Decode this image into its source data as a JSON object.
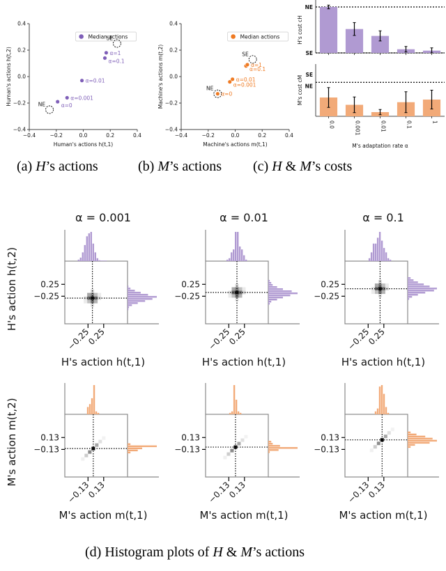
{
  "colors": {
    "human": "#7f5fb8",
    "human_fill": "#b09ad2",
    "machine": "#ef7a22",
    "machine_fill": "#f2aa78",
    "axis": "#444444",
    "frame": "#888888",
    "text": "#111111"
  },
  "captions": {
    "a": {
      "prefix": "(a) ",
      "italic": "H",
      "suffix": "’s actions"
    },
    "b": {
      "prefix": "(b) ",
      "italic": "M",
      "suffix": "’s actions"
    },
    "c": {
      "prefix": "(c) ",
      "italic": "H",
      "mid": " & ",
      "italic2": "M",
      "suffix": "’s costs"
    },
    "d": {
      "prefix": "(d) Histogram plots of ",
      "italic": "H",
      "mid": " & ",
      "italic2": "M",
      "suffix": "’s actions"
    }
  },
  "chart_data": [
    {
      "id": "a",
      "type": "scatter",
      "xlabel": "Human's actions h(t,1)",
      "ylabel": "Human's actions h(t,2)",
      "xlim": [
        -0.4,
        0.4
      ],
      "ylim": [
        -0.4,
        0.4
      ],
      "xticks": [
        "−0.4",
        "−0.2",
        "0.0",
        "0.2",
        "0.4"
      ],
      "yticks": [
        "−0.4",
        "−0.2",
        "0.0",
        "0.2",
        "0.4"
      ],
      "legend": {
        "label": "Median actions",
        "position": "top-right"
      },
      "points": [
        {
          "label": "α=0",
          "x": -0.19,
          "y": -0.19
        },
        {
          "label": "α=0.001",
          "x": -0.12,
          "y": -0.16
        },
        {
          "label": "α=0.01",
          "x": -0.01,
          "y": -0.03
        },
        {
          "label": "α=0.1",
          "x": 0.16,
          "y": 0.14
        },
        {
          "label": "α=1",
          "x": 0.17,
          "y": 0.18
        }
      ],
      "references": [
        {
          "label": "NE",
          "x": -0.25,
          "y": -0.25
        },
        {
          "label": "SE",
          "x": 0.25,
          "y": 0.25
        }
      ]
    },
    {
      "id": "b",
      "type": "scatter",
      "xlabel": "Machine's actions m(t,1)",
      "ylabel": "Machine's actions m(t,2)",
      "xlim": [
        -0.4,
        0.4
      ],
      "ylim": [
        -0.4,
        0.4
      ],
      "xticks": [
        "−0.4",
        "−0.2",
        "0.0",
        "0.2",
        "0.4"
      ],
      "yticks": [
        "−0.4",
        "−0.2",
        "0.0",
        "0.2",
        "0.4"
      ],
      "legend": {
        "label": "Median actions",
        "position": "top-right"
      },
      "points": [
        {
          "label": "α=0",
          "x": -0.13,
          "y": -0.13
        },
        {
          "label": "α=0.001",
          "x": -0.04,
          "y": -0.04
        },
        {
          "label": "α=0.01",
          "x": -0.02,
          "y": -0.02
        },
        {
          "label": "α=0.1",
          "x": 0.08,
          "y": 0.08
        },
        {
          "label": "α=1",
          "x": 0.09,
          "y": 0.09
        }
      ],
      "references": [
        {
          "label": "NE",
          "x": -0.13,
          "y": -0.13
        },
        {
          "label": "SE",
          "x": 0.13,
          "y": 0.13
        }
      ]
    },
    {
      "id": "c",
      "type": "bar",
      "xlabel": "M's adaptation rate α",
      "categories": [
        "0.0",
        "0.001",
        "0.01",
        "0.1",
        "1"
      ],
      "series": [
        {
          "name": "H's cost c_H",
          "ylabel": "H's cost c_H",
          "values": [
            1.0,
            0.52,
            0.37,
            0.08,
            0.05
          ],
          "errors": [
            0.04,
            0.14,
            0.11,
            0.06,
            0.06
          ],
          "ref_lines": [
            {
              "label": "NE",
              "value": 1.0
            },
            {
              "label": "SE",
              "value": 0.0
            }
          ]
        },
        {
          "name": "M's cost c_M",
          "ylabel": "M's cost c_M",
          "values": [
            0.36,
            0.22,
            0.08,
            0.27,
            0.32
          ],
          "errors": [
            0.19,
            0.15,
            0.05,
            0.2,
            0.18
          ],
          "ref_lines": [
            {
              "label": "SE",
              "value": 0.75
            },
            {
              "label": "NE",
              "value": 0.65
            }
          ],
          "ylim": [
            0,
            1.0
          ]
        }
      ]
    },
    {
      "id": "d",
      "type": "heatmap",
      "title": "(d) Histogram plots of H & M's actions",
      "panels": [
        {
          "row": "H",
          "alpha": "α = 0.001",
          "xlabel": "H's action h(t,1)",
          "ylabel": "H's action h(t,2)",
          "ticks": [
            "−0.25",
            "0.25"
          ],
          "median": [
            -0.1,
            -0.15
          ],
          "marg_x": [
            0.05,
            0.12,
            0.3,
            0.55,
            0.85,
            0.95,
            1.0,
            0.6,
            0.3,
            0.1,
            0.03,
            0.02,
            0.02,
            0.02
          ],
          "marg_y": [
            0.03,
            0.1,
            0.25,
            0.45,
            0.7,
            1.0,
            0.85,
            0.6,
            0.35,
            0.15,
            0.05,
            0.03
          ]
        },
        {
          "row": "H",
          "alpha": "α = 0.01",
          "xlabel": "H's action h(t,1)",
          "ylabel": "H's action h(t,2)",
          "ticks": [
            "−0.25",
            "0.25"
          ],
          "median": [
            0.0,
            0.0
          ],
          "marg_x": [
            0.05,
            0.1,
            0.3,
            0.4,
            1.0,
            1.0,
            0.5,
            0.4,
            0.2,
            0.05
          ],
          "marg_y": [
            0.05,
            0.1,
            0.15,
            0.3,
            0.5,
            0.8,
            1.0,
            0.75,
            0.5,
            0.3,
            0.1,
            0.05
          ]
        },
        {
          "row": "H",
          "alpha": "α = 0.1",
          "xlabel": "H's action h(t,1)",
          "ylabel": "H's action h(t,2)",
          "ticks": [
            "−0.25",
            "0.25"
          ],
          "median": [
            0.1,
            0.1
          ],
          "marg_x": [
            0.1,
            0.3,
            0.6,
            0.6,
            0.8,
            1.0,
            0.7,
            0.45,
            0.3,
            0.1,
            0.05
          ],
          "marg_y": [
            0.1,
            0.2,
            0.35,
            0.55,
            0.75,
            1.0,
            0.9,
            0.6,
            0.35,
            0.15,
            0.05
          ]
        },
        {
          "row": "M",
          "alpha": "α = 0.001",
          "xlabel": "M's action m(t,1)",
          "ylabel": "M's action m(t,2)",
          "ticks": [
            "−0.13",
            "0.13"
          ],
          "median": [
            -0.04,
            -0.04
          ],
          "marg_x": [
            0.25,
            0.35,
            0.55,
            1.0,
            0.1,
            0.05
          ],
          "marg_y": [
            0.1,
            1.0,
            0.5,
            0.35,
            0.1
          ]
        },
        {
          "row": "M",
          "alpha": "α = 0.01",
          "xlabel": "M's action m(t,1)",
          "ylabel": "M's action m(t,2)",
          "ticks": [
            "−0.13",
            "0.13"
          ],
          "median": [
            -0.02,
            -0.02
          ],
          "marg_x": [
            0.05,
            0.1,
            1.0,
            0.5,
            0.1,
            0.05
          ],
          "marg_y": [
            0.1,
            0.15,
            0.4,
            1.0,
            0.35,
            0.05
          ]
        },
        {
          "row": "M",
          "alpha": "α = 0.1",
          "xlabel": "M's action m(t,1)",
          "ylabel": "M's action m(t,2)",
          "ticks": [
            "−0.13",
            "0.13"
          ],
          "median": [
            0.08,
            0.08
          ],
          "marg_x": [
            0.1,
            0.2,
            0.95,
            1.0,
            0.7,
            0.25,
            0.05
          ],
          "marg_y": [
            0.1,
            0.3,
            0.6,
            0.85,
            1.0,
            0.75,
            0.25,
            0.1
          ]
        }
      ]
    }
  ]
}
